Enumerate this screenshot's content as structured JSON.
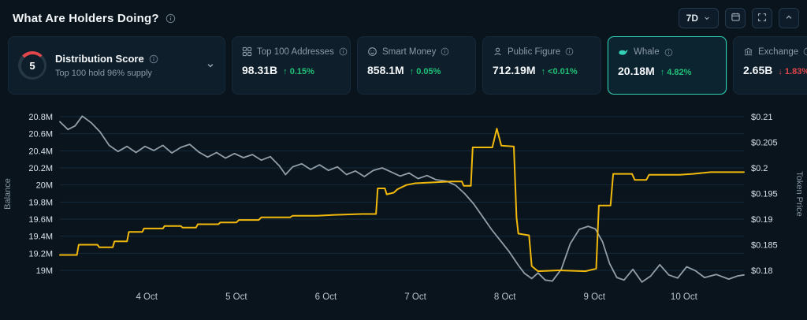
{
  "theme": {
    "background": "#0a141d",
    "card_background": "#0e1e2a",
    "accent_teal": "#2fd1b2",
    "green": "#21c077",
    "red": "#e2464a",
    "balance_line": "#f2b90d",
    "price_line": "#929ea8"
  },
  "header": {
    "title": "What Are Holders Doing?",
    "timeframe": "7D"
  },
  "cards": {
    "distribution": {
      "score": "5",
      "label": "Distribution Score",
      "subtitle": "Top 100 hold 96% supply"
    },
    "stats": [
      {
        "label": "Top 100 Addresses",
        "value": "98.31B",
        "change": "↑ 0.15%",
        "direction": "up",
        "icon": "grid-icon"
      },
      {
        "label": "Smart Money",
        "value": "858.1M",
        "change": "↑ 0.05%",
        "direction": "up",
        "icon": "coin-icon"
      },
      {
        "label": "Public Figure",
        "value": "712.19M",
        "change": "↑ <0.01%",
        "direction": "up",
        "icon": "person-icon"
      },
      {
        "label": "Whale",
        "value": "20.18M",
        "change": "↑ 4.82%",
        "direction": "up",
        "icon": "whale-icon",
        "selected": true
      },
      {
        "label": "Exchange",
        "value": "2.65B",
        "change": "↓ 1.83%",
        "direction": "down",
        "icon": "bank-icon"
      }
    ]
  },
  "chart_data": {
    "type": "line",
    "grid": true,
    "legend": "none",
    "grid_color": "#152a3a",
    "tick_color": "#d9e1e7",
    "xtick_color": "#b9c4cc",
    "axis_title_color": "#8494a1",
    "left_axis": {
      "label": "Balance",
      "ticks": [
        "20.8M",
        "20.6M",
        "20.4M",
        "20.2M",
        "20M",
        "19.8M",
        "19.6M",
        "19.4M",
        "19.2M",
        "19M"
      ],
      "values": [
        20.8,
        20.6,
        20.4,
        20.2,
        20.0,
        19.8,
        19.6,
        19.4,
        19.2,
        19.0
      ],
      "min": 19.0,
      "max": 20.8
    },
    "right_axis": {
      "label": "Token Price",
      "ticks": [
        "$0.21",
        "$0.205",
        "$0.2",
        "$0.195",
        "$0.19",
        "$0.185",
        "$0.18"
      ],
      "values": [
        0.21,
        0.205,
        0.2,
        0.195,
        0.19,
        0.185,
        0.18
      ],
      "min": 0.18,
      "max": 0.21
    },
    "x_axis": {
      "ticks": [
        "4 Oct",
        "5 Oct",
        "6 Oct",
        "7 Oct",
        "8 Oct",
        "9 Oct",
        "10 Oct"
      ],
      "tick_days": [
        4,
        5,
        6,
        7,
        8,
        9,
        10
      ],
      "domain": [
        3.03,
        10.67
      ]
    },
    "series": [
      {
        "name": "Token Price",
        "axis": "right",
        "color": "#929ea8",
        "width": 1.8,
        "points": [
          [
            3.03,
            0.209
          ],
          [
            3.12,
            0.2075
          ],
          [
            3.2,
            0.2082
          ],
          [
            3.28,
            0.2101
          ],
          [
            3.38,
            0.2088
          ],
          [
            3.48,
            0.207
          ],
          [
            3.58,
            0.2044
          ],
          [
            3.68,
            0.2032
          ],
          [
            3.78,
            0.2042
          ],
          [
            3.88,
            0.203
          ],
          [
            3.98,
            0.2042
          ],
          [
            4.08,
            0.2034
          ],
          [
            4.18,
            0.2044
          ],
          [
            4.28,
            0.2029
          ],
          [
            4.38,
            0.204
          ],
          [
            4.48,
            0.2046
          ],
          [
            4.58,
            0.2031
          ],
          [
            4.68,
            0.2021
          ],
          [
            4.78,
            0.203
          ],
          [
            4.88,
            0.2019
          ],
          [
            4.98,
            0.2028
          ],
          [
            5.08,
            0.202
          ],
          [
            5.18,
            0.2026
          ],
          [
            5.28,
            0.2015
          ],
          [
            5.38,
            0.2022
          ],
          [
            5.48,
            0.2004
          ],
          [
            5.55,
            0.1987
          ],
          [
            5.63,
            0.2002
          ],
          [
            5.73,
            0.2008
          ],
          [
            5.83,
            0.1997
          ],
          [
            5.93,
            0.2006
          ],
          [
            6.03,
            0.1995
          ],
          [
            6.13,
            0.2002
          ],
          [
            6.23,
            0.1987
          ],
          [
            6.33,
            0.1994
          ],
          [
            6.43,
            0.1983
          ],
          [
            6.53,
            0.1995
          ],
          [
            6.63,
            0.2
          ],
          [
            6.73,
            0.1992
          ],
          [
            6.83,
            0.1984
          ],
          [
            6.93,
            0.199
          ],
          [
            7.03,
            0.1979
          ],
          [
            7.13,
            0.1985
          ],
          [
            7.23,
            0.1977
          ],
          [
            7.35,
            0.1974
          ],
          [
            7.45,
            0.1966
          ],
          [
            7.55,
            0.195
          ],
          [
            7.65,
            0.193
          ],
          [
            7.75,
            0.1905
          ],
          [
            7.85,
            0.188
          ],
          [
            7.95,
            0.1858
          ],
          [
            8.05,
            0.1836
          ],
          [
            8.15,
            0.181
          ],
          [
            8.22,
            0.1794
          ],
          [
            8.3,
            0.1784
          ],
          [
            8.37,
            0.1795
          ],
          [
            8.45,
            0.1781
          ],
          [
            8.53,
            0.1779
          ],
          [
            8.63,
            0.1802
          ],
          [
            8.73,
            0.1852
          ],
          [
            8.83,
            0.188
          ],
          [
            8.93,
            0.1886
          ],
          [
            9.01,
            0.1881
          ],
          [
            9.09,
            0.1856
          ],
          [
            9.17,
            0.1813
          ],
          [
            9.25,
            0.1786
          ],
          [
            9.33,
            0.1781
          ],
          [
            9.43,
            0.1802
          ],
          [
            9.53,
            0.1777
          ],
          [
            9.63,
            0.1789
          ],
          [
            9.73,
            0.1811
          ],
          [
            9.83,
            0.1791
          ],
          [
            9.93,
            0.1785
          ],
          [
            10.03,
            0.1807
          ],
          [
            10.13,
            0.1799
          ],
          [
            10.23,
            0.1786
          ],
          [
            10.36,
            0.1792
          ],
          [
            10.5,
            0.1783
          ],
          [
            10.6,
            0.1789
          ],
          [
            10.67,
            0.1791
          ]
        ]
      },
      {
        "name": "Balance",
        "axis": "left",
        "color": "#f2b90d",
        "width": 2,
        "points": [
          [
            3.03,
            19.18
          ],
          [
            3.22,
            19.18
          ],
          [
            3.24,
            19.3
          ],
          [
            3.45,
            19.3
          ],
          [
            3.47,
            19.27
          ],
          [
            3.62,
            19.27
          ],
          [
            3.64,
            19.34
          ],
          [
            3.78,
            19.34
          ],
          [
            3.8,
            19.45
          ],
          [
            3.95,
            19.45
          ],
          [
            3.97,
            19.49
          ],
          [
            4.18,
            19.49
          ],
          [
            4.2,
            19.52
          ],
          [
            4.38,
            19.52
          ],
          [
            4.4,
            19.5
          ],
          [
            4.55,
            19.5
          ],
          [
            4.57,
            19.54
          ],
          [
            4.8,
            19.54
          ],
          [
            4.82,
            19.56
          ],
          [
            5.0,
            19.56
          ],
          [
            5.03,
            19.59
          ],
          [
            5.25,
            19.59
          ],
          [
            5.28,
            19.62
          ],
          [
            5.6,
            19.62
          ],
          [
            5.63,
            19.64
          ],
          [
            5.9,
            19.64
          ],
          [
            6.1,
            19.65
          ],
          [
            6.4,
            19.66
          ],
          [
            6.56,
            19.66
          ],
          [
            6.58,
            19.96
          ],
          [
            6.66,
            19.96
          ],
          [
            6.68,
            19.89
          ],
          [
            6.76,
            19.91
          ],
          [
            6.8,
            19.95
          ],
          [
            6.9,
            20.0
          ],
          [
            7.0,
            20.02
          ],
          [
            7.2,
            20.03
          ],
          [
            7.4,
            20.04
          ],
          [
            7.52,
            20.04
          ],
          [
            7.54,
            19.99
          ],
          [
            7.62,
            19.99
          ],
          [
            7.64,
            20.44
          ],
          [
            7.86,
            20.44
          ],
          [
            7.91,
            20.66
          ],
          [
            7.96,
            20.46
          ],
          [
            8.1,
            20.45
          ],
          [
            8.13,
            19.62
          ],
          [
            8.15,
            19.43
          ],
          [
            8.27,
            19.41
          ],
          [
            8.3,
            19.05
          ],
          [
            8.37,
            18.99
          ],
          [
            8.6,
            19.0
          ],
          [
            8.9,
            18.99
          ],
          [
            9.02,
            19.02
          ],
          [
            9.05,
            19.76
          ],
          [
            9.18,
            19.76
          ],
          [
            9.21,
            20.13
          ],
          [
            9.42,
            20.13
          ],
          [
            9.45,
            20.06
          ],
          [
            9.58,
            20.06
          ],
          [
            9.61,
            20.12
          ],
          [
            9.95,
            20.12
          ],
          [
            10.1,
            20.13
          ],
          [
            10.3,
            20.15
          ],
          [
            10.67,
            20.15
          ]
        ]
      }
    ]
  }
}
